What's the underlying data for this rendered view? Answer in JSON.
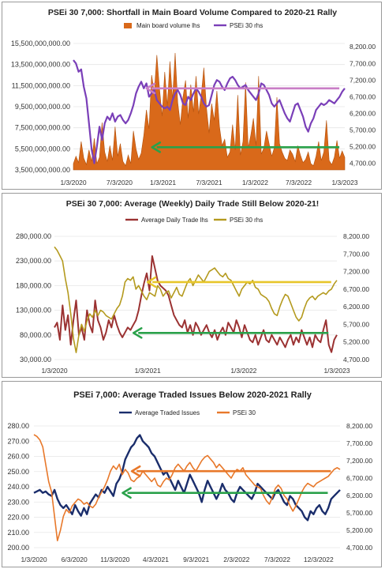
{
  "chart_data": [
    {
      "type": "area",
      "title": "PSEi 30 7,000: Shortfall in Main Board Volume Compared to 2020-21 Rally",
      "legend": "top",
      "x_labels": [
        "1/3/2020",
        "7/3/2020",
        "1/3/2021",
        "7/3/2021",
        "1/3/2022",
        "7/3/2022",
        "1/3/2023"
      ],
      "y_left_ticks": [
        "15,500,000,000.00",
        "13,500,000,000.00",
        "11,500,000,000.00",
        "9,500,000,000.00",
        "7,500,000,000.00",
        "5,500,000,000.00",
        "3,500,000,000.00"
      ],
      "y_right_ticks": [
        "8,200.00",
        "7,700.00",
        "7,200.00",
        "6,700.00",
        "6,200.00",
        "5,700.00",
        "5,200.00",
        "4,700.00"
      ],
      "ylim_left": [
        3500000000,
        15500000000
      ],
      "ylim_right": [
        4500,
        8300
      ],
      "annotation_levels": {
        "psei_reference": 6950,
        "volume_reference": 5650000000
      },
      "colors": {
        "volume": "#d9691a",
        "psei": "#7a3fb8",
        "psei_ref": "#c97ec6",
        "vol_ref": "#2aa14a"
      },
      "series": [
        {
          "name": "Main board volume lhs",
          "axis": "left",
          "values": [
            4100000000,
            4800000000,
            4200000000,
            6200000000,
            4600000000,
            4000000000,
            5400000000,
            4300000000,
            6500000000,
            4100000000,
            4700000000,
            8000000000,
            5200000000,
            4300000000,
            5800000000,
            4400000000,
            7600000000,
            4800000000,
            6000000000,
            4300000000,
            3900000000,
            4900000000,
            4100000000,
            7200000000,
            5500000000,
            4500000000,
            5100000000,
            6800000000,
            9200000000,
            7400000000,
            12500000000,
            10800000000,
            14400000000,
            11200000000,
            8600000000,
            12800000000,
            9600000000,
            13800000000,
            10200000000,
            14600000000,
            9900000000,
            7800000000,
            10400000000,
            12000000000,
            8400000000,
            11600000000,
            9000000000,
            12400000000,
            8800000000,
            10600000000,
            13200000000,
            9400000000,
            7000000000,
            9800000000,
            8200000000,
            11000000000,
            7600000000,
            5800000000,
            6400000000,
            4700000000,
            5200000000,
            7800000000,
            5400000000,
            10600000000,
            4900000000,
            6200000000,
            11800000000,
            5600000000,
            6800000000,
            8400000000,
            5800000000,
            12400000000,
            5000000000,
            5600000000,
            7200000000,
            6000000000,
            4800000000,
            5600000000,
            10400000000,
            6000000000,
            5200000000,
            4600000000,
            4400000000,
            5400000000,
            5000000000,
            4300000000,
            5800000000,
            4900000000,
            4200000000,
            4500000000,
            5200000000,
            4100000000,
            3900000000,
            4800000000,
            6200000000,
            4400000000,
            5200000000,
            8200000000,
            4400000000,
            4000000000,
            4700000000,
            6300000000,
            4600000000,
            5300000000,
            4700000000
          ]
        },
        {
          "name": "PSEi 30 rhs",
          "axis": "right",
          "values": [
            7800,
            7700,
            7450,
            7520,
            7000,
            6650,
            5900,
            5100,
            4700,
            5200,
            5800,
            5400,
            5900,
            6100,
            6000,
            6200,
            5950,
            6100,
            6150,
            6000,
            5900,
            6000,
            6200,
            6450,
            6800,
            7000,
            7150,
            6950,
            7100,
            6700,
            6800,
            6900,
            6600,
            6500,
            6400,
            6350,
            6400,
            6300,
            6600,
            6800,
            6900,
            6750,
            6500,
            6450,
            6700,
            6600,
            6800,
            6950,
            6850,
            6700,
            6500,
            6400,
            6450,
            6750,
            7050,
            7200,
            7150,
            7000,
            6900,
            7100,
            7250,
            7300,
            7200,
            7050,
            6950,
            7000,
            7050,
            6900,
            6800,
            6700,
            6600,
            6800,
            7100,
            7050,
            6900,
            6750,
            6500,
            6400,
            6500,
            6600,
            6400,
            6200,
            6050,
            5950,
            6200,
            6450,
            6500,
            6300,
            6100,
            5800,
            5650,
            5900,
            6050,
            6300,
            6400,
            6500,
            6450,
            6500,
            6600,
            6550,
            6500,
            6600,
            6700,
            6850,
            6950
          ]
        }
      ]
    },
    {
      "type": "line",
      "title": "PSEi 30 7,000: Average (Weekly) Daily Trade Still Below 2020-21!",
      "legend": "top",
      "x_labels": [
        "1/3/2020",
        "1/3/2021",
        "1/3/2022",
        "1/3/2023"
      ],
      "y_left_ticks": [
        "280,000.00",
        "230,000.00",
        "180,000.00",
        "130,000.00",
        "80,000.00",
        "30,000.00"
      ],
      "y_right_ticks": [
        "8,200.00",
        "7,700.00",
        "7,200.00",
        "6,700.00",
        "6,200.00",
        "5,700.00",
        "5,200.00",
        "4,700.00"
      ],
      "ylim_left": [
        30000,
        280000
      ],
      "ylim_right": [
        4700,
        8200
      ],
      "annotation_levels": {
        "psei_reference": 6900,
        "trade_reference": 84000
      },
      "colors": {
        "trade": "#9b3232",
        "psei": "#b49a1e",
        "psei_ref": "#e7c62a",
        "trade_ref": "#2aa14a"
      },
      "series": [
        {
          "name": "Average Daily Trade lhs",
          "axis": "left",
          "values": [
            95000,
            105000,
            70000,
            140000,
            90000,
            120000,
            60000,
            110000,
            150000,
            80000,
            95000,
            70000,
            130000,
            100000,
            85000,
            150000,
            110000,
            95000,
            70000,
            85000,
            110000,
            95000,
            120000,
            100000,
            85000,
            75000,
            85000,
            95000,
            90000,
            100000,
            110000,
            130000,
            160000,
            185000,
            205000,
            170000,
            240000,
            215000,
            190000,
            180000,
            175000,
            170000,
            160000,
            140000,
            120000,
            110000,
            100000,
            95000,
            110000,
            85000,
            100000,
            80000,
            105000,
            95000,
            80000,
            90000,
            100000,
            85000,
            75000,
            90000,
            70000,
            85000,
            95000,
            80000,
            105000,
            95000,
            85000,
            110000,
            95000,
            75000,
            100000,
            85000,
            70000,
            65000,
            80000,
            60000,
            75000,
            90000,
            70000,
            65000,
            80000,
            70000,
            60000,
            75000,
            65000,
            55000,
            70000,
            80000,
            60000,
            75000,
            65000,
            90000,
            75000,
            60000,
            75000,
            55000,
            80000,
            70000,
            65000,
            90000,
            110000,
            60000,
            45000,
            70000,
            80000
          ]
        },
        {
          "name": "PSEi 30 rhs",
          "axis": "right",
          "values": [
            7900,
            7800,
            7650,
            7500,
            7000,
            6600,
            6000,
            5300,
            4900,
            5400,
            5700,
            5500,
            5800,
            6000,
            5900,
            6100,
            5950,
            6100,
            6050,
            5950,
            5900,
            5850,
            6000,
            6150,
            6250,
            6500,
            6900,
            7000,
            6950,
            7050,
            6700,
            6800,
            6650,
            6500,
            6400,
            6600,
            6550,
            6500,
            6800,
            6700,
            6500,
            6600,
            6650,
            6450,
            6600,
            6750,
            6550,
            6500,
            6700,
            6900,
            7000,
            6800,
            6950,
            7100,
            7000,
            6900,
            7050,
            7200,
            7250,
            7300,
            7200,
            7100,
            7050,
            7150,
            7000,
            6950,
            6800,
            6650,
            6500,
            6700,
            6800,
            6900,
            6850,
            6950,
            6750,
            6700,
            6550,
            6500,
            6450,
            6350,
            6150,
            6000,
            5950,
            6200,
            6400,
            6550,
            6500,
            6300,
            6100,
            5900,
            5800,
            5900,
            6150,
            6350,
            6450,
            6500,
            6400,
            6500,
            6550,
            6600,
            6550,
            6650,
            6700,
            6850,
            6950
          ]
        }
      ]
    },
    {
      "type": "line",
      "title": "PSEi 7,000: Average Traded Issues Below 2020-2021 Rally",
      "legend": "top",
      "x_labels": [
        "1/3/2020",
        "6/3/2020",
        "11/3/2020",
        "4/3/2021",
        "9/3/2021",
        "2/3/2022",
        "7/3/2022",
        "12/3/2022"
      ],
      "y_left_ticks": [
        "280.00",
        "270.00",
        "260.00",
        "250.00",
        "240.00",
        "230.00",
        "220.00",
        "210.00",
        "200.00"
      ],
      "y_right_ticks": [
        "8,200.00",
        "7,700.00",
        "7,200.00",
        "6,700.00",
        "6,200.00",
        "5,700.00",
        "5,200.00",
        "4,700.00"
      ],
      "ylim_left": [
        200,
        280
      ],
      "ylim_right": [
        4700,
        8200
      ],
      "annotation_levels": {
        "psei_reference": 6900,
        "issues_reference": 236
      },
      "colors": {
        "issues": "#1a2d6b",
        "psei": "#e8782a",
        "psei_ref": "#e8782a",
        "issues_ref": "#2aa14a"
      },
      "series": [
        {
          "name": "Average Traded Issues",
          "axis": "left",
          "values": [
            236,
            237,
            238,
            236,
            237,
            235,
            234,
            238,
            232,
            228,
            226,
            228,
            225,
            222,
            228,
            224,
            221,
            226,
            222,
            229,
            232,
            235,
            233,
            238,
            236,
            240,
            237,
            234,
            242,
            245,
            250,
            258,
            262,
            266,
            268,
            272,
            274,
            270,
            268,
            266,
            262,
            260,
            256,
            252,
            248,
            250,
            246,
            242,
            238,
            244,
            240,
            236,
            242,
            248,
            244,
            240,
            236,
            230,
            238,
            244,
            240,
            236,
            232,
            236,
            242,
            238,
            236,
            232,
            230,
            236,
            240,
            238,
            236,
            234,
            232,
            236,
            242,
            240,
            238,
            236,
            234,
            232,
            236,
            238,
            234,
            230,
            228,
            234,
            232,
            228,
            226,
            224,
            220,
            218,
            224,
            222,
            226,
            228,
            224,
            222,
            226,
            232,
            234,
            236,
            238
          ]
        },
        {
          "name": "PSEi 30",
          "axis": "right",
          "values": [
            7950,
            7900,
            7800,
            7600,
            7100,
            6600,
            6300,
            5600,
            4900,
            5200,
            5600,
            5800,
            5700,
            5900,
            6000,
            6100,
            6050,
            5950,
            6000,
            5900,
            5850,
            5950,
            6150,
            6300,
            6450,
            6650,
            6900,
            7050,
            6950,
            7100,
            6800,
            6950,
            6850,
            6650,
            6600,
            6700,
            6750,
            6900,
            6800,
            6700,
            6600,
            6700,
            6500,
            6450,
            6600,
            6700,
            6650,
            6800,
            7000,
            7100,
            7000,
            6900,
            7050,
            7150,
            7000,
            6900,
            7050,
            7200,
            7300,
            7350,
            7250,
            7150,
            7000,
            7100,
            7000,
            6900,
            6800,
            6700,
            6850,
            6950,
            6900,
            7000,
            6800,
            6700,
            6600,
            6500,
            6450,
            6400,
            6200,
            6050,
            5950,
            6150,
            6400,
            6500,
            6400,
            6200,
            6100,
            5900,
            5750,
            5900,
            6100,
            6300,
            6450,
            6550,
            6500,
            6450,
            6550,
            6600,
            6650,
            6700,
            6750,
            6850,
            6950,
            7000,
            6950
          ]
        }
      ]
    }
  ]
}
